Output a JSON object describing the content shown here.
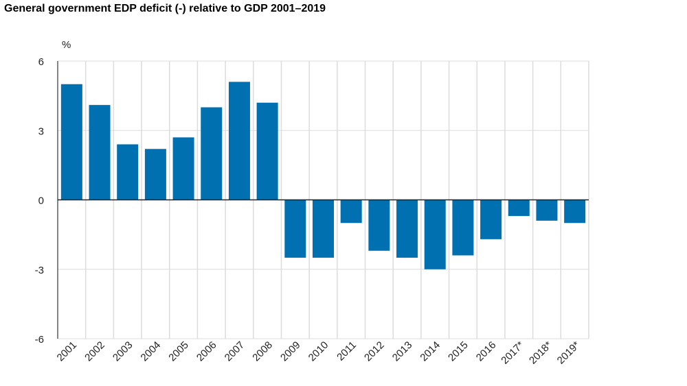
{
  "chart_data": {
    "type": "bar",
    "title": "General government EDP deficit (-) relative to GDP 2001–2019",
    "ylabel": "%",
    "xlabel": "",
    "categories": [
      "2001",
      "2002",
      "2003",
      "2004",
      "2005",
      "2006",
      "2007",
      "2008",
      "2009",
      "2010",
      "2011",
      "2012",
      "2013",
      "2014",
      "2015",
      "2016",
      "2017*",
      "2018*",
      "2019*"
    ],
    "values": [
      5.0,
      4.1,
      2.4,
      2.2,
      2.7,
      4.0,
      5.1,
      4.2,
      -2.5,
      -2.5,
      -1.0,
      -2.2,
      -2.5,
      -3.0,
      -2.4,
      -1.7,
      -0.7,
      -0.9,
      -1.0
    ],
    "ylim": [
      -6,
      6
    ],
    "yticks": [
      6,
      3,
      0,
      -3,
      -6
    ],
    "grid": true,
    "bar_color": "#0070b0"
  }
}
